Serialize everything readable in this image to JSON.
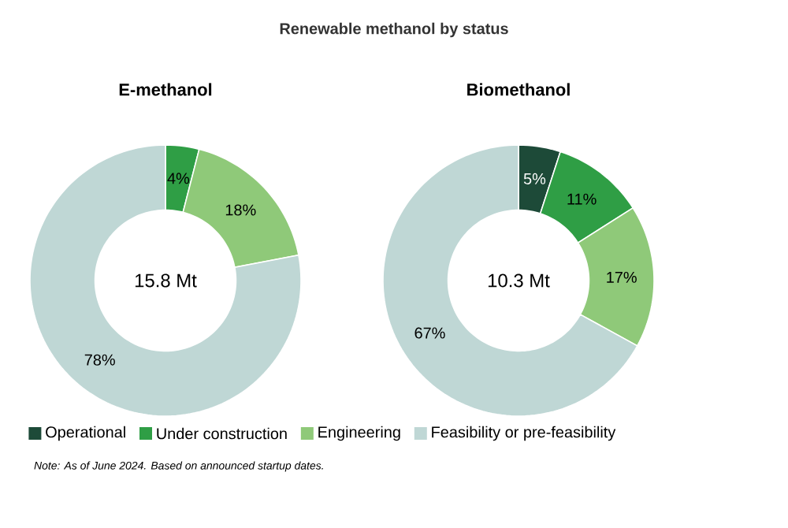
{
  "chart_data": {
    "type": "donut",
    "title": "Renewable methanol by status",
    "categories": [
      "Operational",
      "Under construction",
      "Engineering",
      "Feasibility or pre-feasibility"
    ],
    "colors": [
      "#1d4a38",
      "#2f9e45",
      "#8fc979",
      "#bfd7d5"
    ],
    "legend": "bottom",
    "series": [
      {
        "name": "E-methanol",
        "values": [
          0,
          4,
          18,
          78
        ],
        "value_labels": [
          null,
          "4%",
          "18%",
          "78%"
        ]
      },
      {
        "name": "Biomethanol",
        "values": [
          5,
          11,
          17,
          67
        ],
        "value_labels": [
          "5%",
          "11%",
          "17%",
          "67%"
        ]
      }
    ],
    "annotations": [
      "15.8 Mt",
      "10.3 Mt",
      "Note: As of June 2024. Based on announced startup dates."
    ]
  }
}
